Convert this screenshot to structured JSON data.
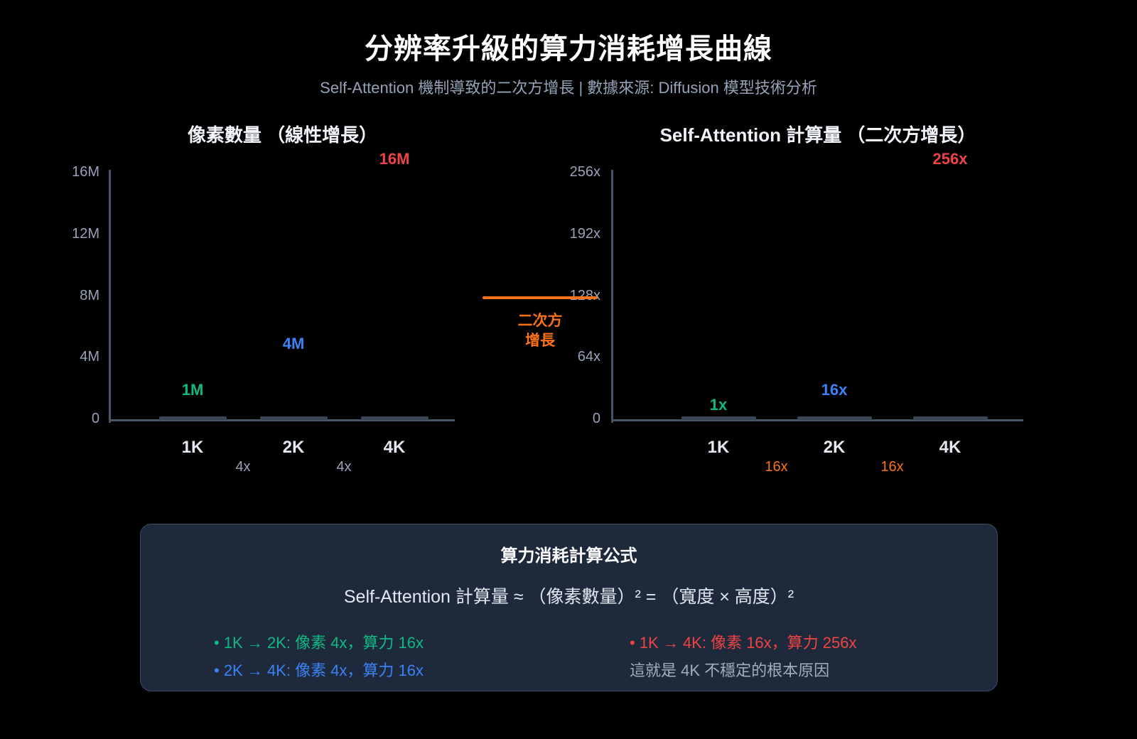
{
  "header": {
    "title": "分辨率升級的算力消耗增長曲線",
    "subtitle": "Self-Attention 機制導致的二次方增長 | 數據來源: Diffusion 模型技術分析"
  },
  "colors": {
    "page_bg": "#000000",
    "green": "#10b981",
    "blue": "#3b82f6",
    "red": "#ef4444",
    "orange": "#f97316",
    "axis": "#475569",
    "tick_text": "#94a3b8",
    "category_text": "#e2e8f0",
    "panel_bg": "#1e293b",
    "panel_border": "#3e4c63"
  },
  "chart_data": [
    {
      "type": "bar",
      "title": "像素數量 （線性增長）",
      "categories": [
        "1K",
        "2K",
        "4K"
      ],
      "values": [
        1000000,
        4000000,
        16000000
      ],
      "value_labels": [
        "1M",
        "4M",
        "16M"
      ],
      "value_label_colors": [
        "#10b981",
        "#3b82f6",
        "#ef4444"
      ],
      "y_ticks": [
        "0",
        "4M",
        "8M",
        "12M",
        "16M"
      ],
      "ylim": [
        0,
        16000000
      ],
      "between_category_labels": [
        "4x",
        "4x"
      ],
      "between_label_color": "#94a3b8",
      "grid": false,
      "legend": "none"
    },
    {
      "type": "bar",
      "title": "Self-Attention 計算量 （二次方增長）",
      "categories": [
        "1K",
        "2K",
        "4K"
      ],
      "values": [
        1,
        16,
        256
      ],
      "value_labels": [
        "1x",
        "16x",
        "256x"
      ],
      "value_label_colors": [
        "#10b981",
        "#3b82f6",
        "#ef4444"
      ],
      "y_ticks": [
        "0",
        "64x",
        "128x",
        "192x",
        "256x"
      ],
      "ylim": [
        0,
        256
      ],
      "between_category_labels": [
        "16x",
        "16x"
      ],
      "between_label_color": "#f97316",
      "grid": false,
      "legend": "none"
    }
  ],
  "annotation": {
    "text_lines": [
      "二次方",
      "增長"
    ],
    "color": "#f97316"
  },
  "panel": {
    "title": "算力消耗計算公式",
    "formula": "Self-Attention 計算量 ≈ （像素數量）² = （寬度 × 高度）²",
    "bullets_left": [
      {
        "text": "• 1K → 2K: 像素 4x，算力 16x",
        "color": "#10b981"
      },
      {
        "text": "• 2K → 4K: 像素 4x，算力 16x",
        "color": "#3b82f6"
      }
    ],
    "bullets_right": [
      {
        "text": "• 1K → 4K: 像素 16x，算力 256x",
        "color": "#ef4444"
      },
      {
        "text": "這就是 4K 不穩定的根本原因",
        "color": "#a0aec0"
      }
    ]
  }
}
